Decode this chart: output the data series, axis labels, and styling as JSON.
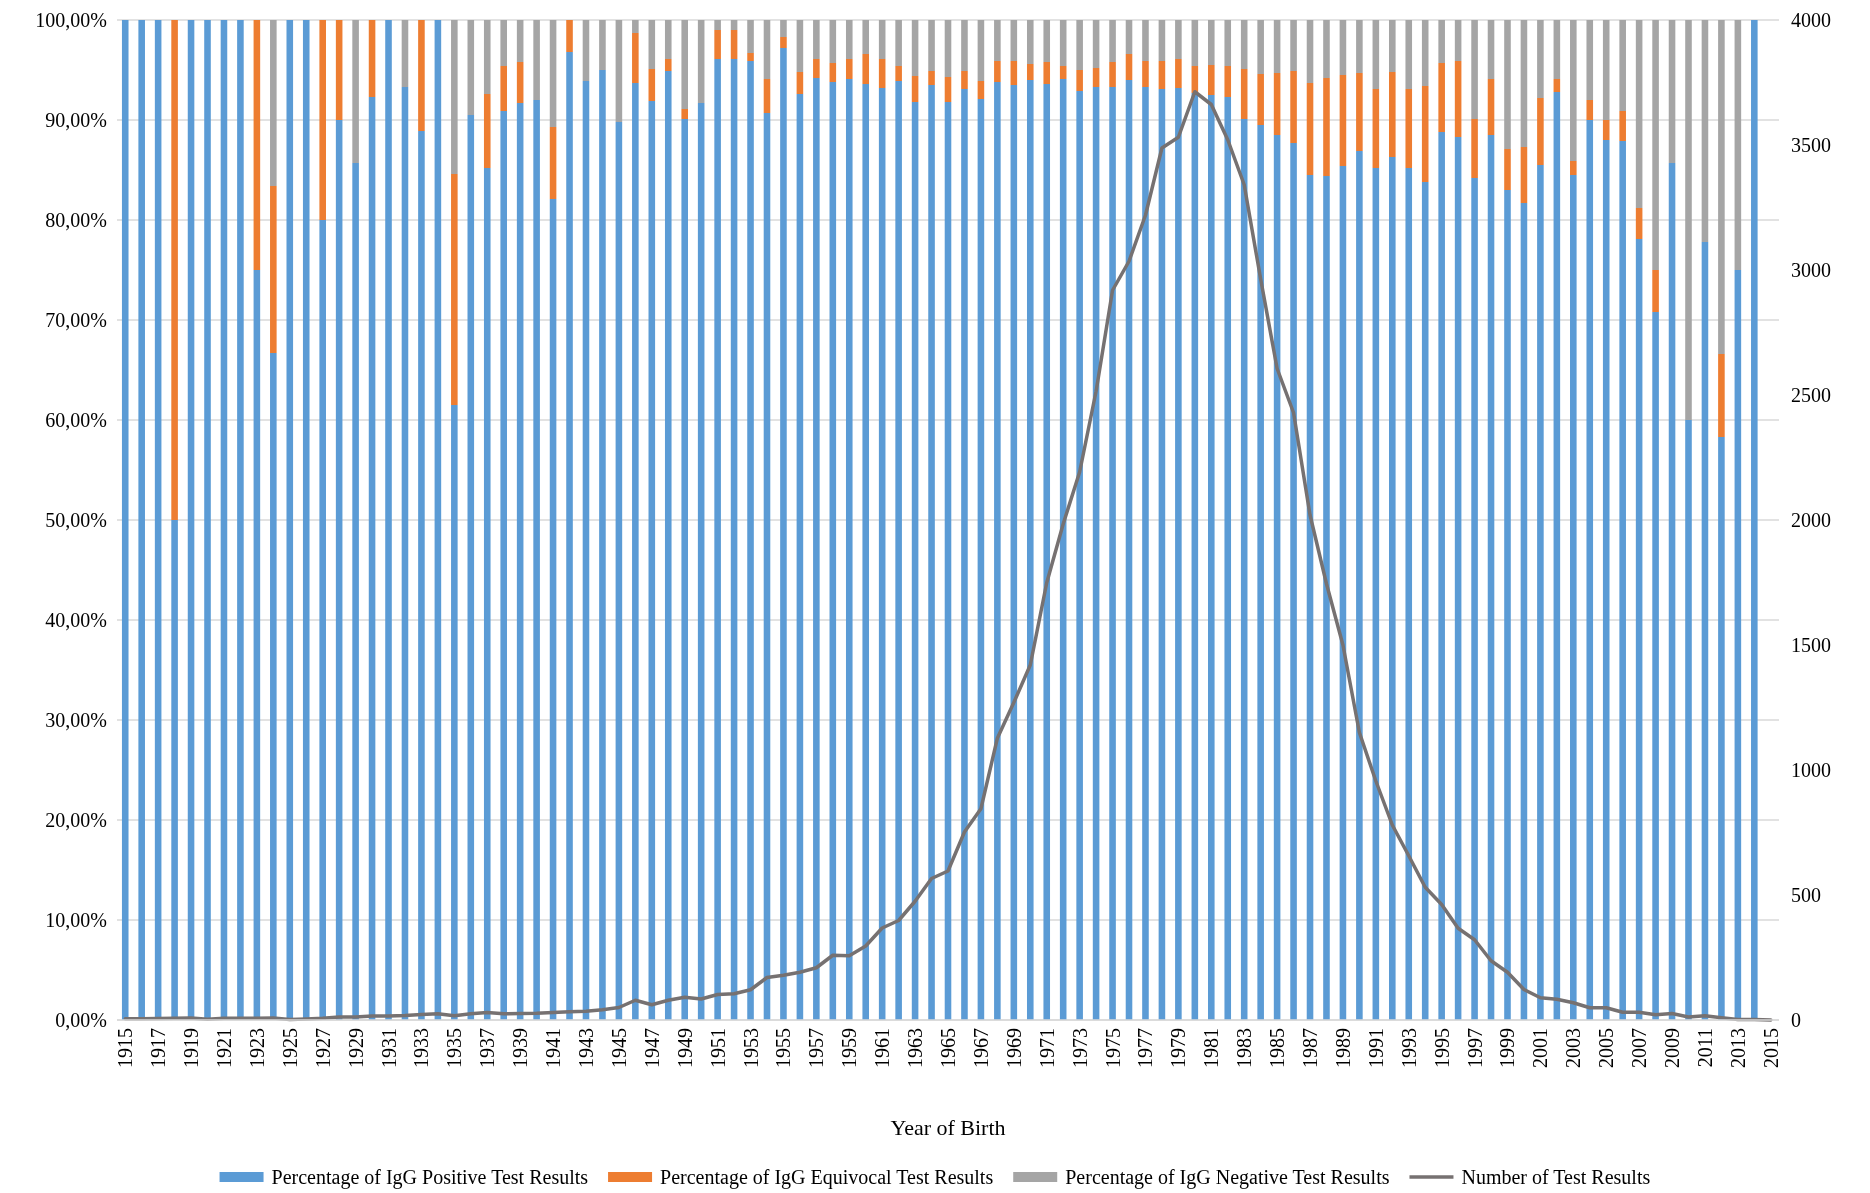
{
  "chart_data": {
    "type": "bar",
    "stacked": true,
    "xlabel": "Year of Birth",
    "grid": "y",
    "legend": "bottom",
    "categories": [
      "1915",
      null,
      "1917",
      null,
      "1919",
      null,
      "1921",
      null,
      "1923",
      null,
      "1925",
      null,
      "1927",
      null,
      "1929",
      null,
      "1931",
      null,
      "1933",
      null,
      "1935",
      null,
      "1937",
      null,
      "1939",
      null,
      "1941",
      null,
      "1943",
      null,
      "1945",
      null,
      "1947",
      null,
      "1949",
      null,
      "1951",
      null,
      "1953",
      null,
      "1955",
      null,
      "1957",
      null,
      "1959",
      null,
      "1961",
      null,
      "1963",
      null,
      "1965",
      null,
      "1967",
      null,
      "1969",
      null,
      "1971",
      null,
      "1973",
      null,
      "1975",
      null,
      "1977",
      null,
      "1979",
      null,
      "1981",
      null,
      "1983",
      null,
      "1985",
      null,
      "1987",
      null,
      "1989",
      null,
      "1991",
      null,
      "1993",
      null,
      "1995",
      null,
      "1997",
      null,
      "1999",
      null,
      "2001",
      null,
      "2003",
      null,
      "2005",
      null,
      "2007",
      null,
      "2009",
      null,
      "2011",
      null,
      "2013",
      null,
      "2015"
    ],
    "ylim": [
      0,
      100
    ],
    "yticks": [
      {
        "value": 0,
        "label": "0,00%"
      },
      {
        "value": 10,
        "label": "10,00%"
      },
      {
        "value": 20,
        "label": "20,00%"
      },
      {
        "value": 30,
        "label": "30,00%"
      },
      {
        "value": 40,
        "label": "40,00%"
      },
      {
        "value": 50,
        "label": "50,00%"
      },
      {
        "value": 60,
        "label": "60,00%"
      },
      {
        "value": 70,
        "label": "70,00%"
      },
      {
        "value": 80,
        "label": "80,00%"
      },
      {
        "value": 90,
        "label": "90,00%"
      },
      {
        "value": 100,
        "label": "100,00%"
      }
    ],
    "y2lim": [
      0,
      4000
    ],
    "y2ticks": [
      0,
      500,
      1000,
      1500,
      2000,
      2500,
      3000,
      3500,
      4000
    ],
    "series": [
      {
        "name": "Percentage of IgG Positive Test Results",
        "color": "#5b9bd5",
        "values": [
          100,
          100,
          100,
          50,
          100,
          100,
          100,
          100,
          75,
          66.7,
          100,
          100,
          80,
          90,
          85.7,
          92.3,
          100,
          93.3,
          88.9,
          100,
          61.5,
          90.5,
          85.2,
          90.9,
          91.7,
          92,
          82.1,
          96.8,
          93.9,
          95,
          89.8,
          93.7,
          91.9,
          94.9,
          90.1,
          91.7,
          96.1,
          96.1,
          95.9,
          90.7,
          97.2,
          92.6,
          94.2,
          93.8,
          94.1,
          93.6,
          93.2,
          93.9,
          91.8,
          93.5,
          91.8,
          93.1,
          92.1,
          93.8,
          93.5,
          94,
          93.6,
          94.1,
          92.9,
          93.3,
          93.3,
          94,
          93.3,
          93.1,
          93.2,
          92.7,
          92.5,
          92.3,
          90.1,
          89.5,
          88.5,
          87.7,
          84.5,
          84.4,
          85.4,
          86.9,
          85.2,
          86.3,
          85.2,
          83.8,
          88.8,
          88.3,
          84.2,
          88.5,
          83,
          81.7,
          85.5,
          92.8,
          84.5,
          90,
          88,
          87.9,
          78.1,
          70.8,
          85.7,
          60,
          77.8,
          58.3,
          75,
          100,
          null
        ]
      },
      {
        "name": "Percentage of IgG Equivocal Test Results",
        "color": "#ed7d31",
        "values": [
          0,
          0,
          0,
          50,
          0,
          0,
          0,
          0,
          25,
          16.7,
          0,
          0,
          20,
          10,
          0,
          7.7,
          0,
          0,
          11.1,
          0,
          23.1,
          0,
          7.4,
          4.5,
          4.1,
          0,
          7.2,
          3.2,
          0,
          0,
          0,
          5,
          3.2,
          1.2,
          1,
          0,
          2.9,
          2.9,
          0.8,
          3.4,
          1.1,
          2.2,
          1.9,
          1.9,
          2,
          3,
          2.9,
          1.5,
          2.6,
          1.4,
          2.5,
          1.8,
          1.8,
          2.1,
          2.4,
          1.6,
          2.2,
          1.3,
          2.1,
          1.9,
          2.5,
          2.6,
          2.6,
          2.8,
          2.9,
          2.7,
          3,
          3.1,
          5,
          5.1,
          6.2,
          7.2,
          9.2,
          9.8,
          9.1,
          7.8,
          7.9,
          8.5,
          7.9,
          9.6,
          6.9,
          7.6,
          5.9,
          5.6,
          4.1,
          5.6,
          6.7,
          1.3,
          1.4,
          2,
          2,
          3,
          3.1,
          4.2,
          0,
          0,
          0,
          8.3,
          0,
          0,
          null
        ]
      },
      {
        "name": "Percentage of IgG Negative Test Results",
        "color": "#a5a5a5",
        "values": [
          0,
          0,
          0,
          0,
          0,
          0,
          0,
          0,
          0,
          16.6,
          0,
          0,
          0,
          0,
          14.3,
          0,
          0,
          6.7,
          0,
          0,
          15.4,
          9.5,
          7.4,
          4.6,
          4.2,
          8,
          10.7,
          0,
          6.1,
          5,
          10.2,
          1.3,
          4.9,
          3.9,
          8.9,
          8.3,
          1,
          1,
          3.3,
          5.9,
          1.7,
          5.2,
          3.9,
          4.3,
          3.9,
          3.4,
          3.9,
          4.6,
          5.6,
          5.1,
          5.7,
          5.1,
          6.1,
          4.1,
          4.1,
          4.4,
          4.2,
          4.6,
          5,
          4.8,
          4.2,
          3.4,
          4.1,
          4.1,
          3.9,
          4.6,
          4.5,
          4.6,
          4.9,
          5.4,
          5.3,
          5.1,
          6.3,
          5.8,
          5.5,
          5.3,
          6.9,
          5.2,
          6.9,
          6.6,
          4.3,
          4.1,
          9.9,
          5.9,
          12.9,
          12.7,
          7.8,
          5.9,
          14.1,
          8,
          10,
          9.1,
          18.8,
          25,
          14.3,
          40,
          22.2,
          33.4,
          25,
          0,
          null
        ]
      },
      {
        "name": "Number of Test Results",
        "type": "line",
        "axis": "y2",
        "color": "#767171",
        "values": [
          5,
          5,
          6,
          7,
          8,
          3,
          7,
          7,
          7,
          8,
          2,
          4,
          7,
          12,
          12,
          16,
          16,
          18,
          22,
          25,
          17,
          25,
          30,
          25,
          26,
          27,
          30,
          33,
          35,
          41,
          50,
          79,
          61,
          79,
          91,
          84,
          102,
          105,
          121,
          170,
          179,
          191,
          209,
          259,
          257,
          296,
          368,
          398,
          475,
          566,
          596,
          752,
          845,
          1127,
          1270,
          1420,
          1749,
          1984,
          2192,
          2515,
          2919,
          3035,
          3219,
          3488,
          3531,
          3713,
          3662,
          3521,
          3341,
          2964,
          2606,
          2429,
          2020,
          1745,
          1500,
          1150,
          956,
          780,
          657,
          531,
          462,
          367,
          321,
          237,
          191,
          122,
          89,
          83,
          69,
          49,
          49,
          31,
          31,
          21,
          26,
          12,
          17,
          9,
          2,
          2,
          0
        ]
      }
    ]
  }
}
